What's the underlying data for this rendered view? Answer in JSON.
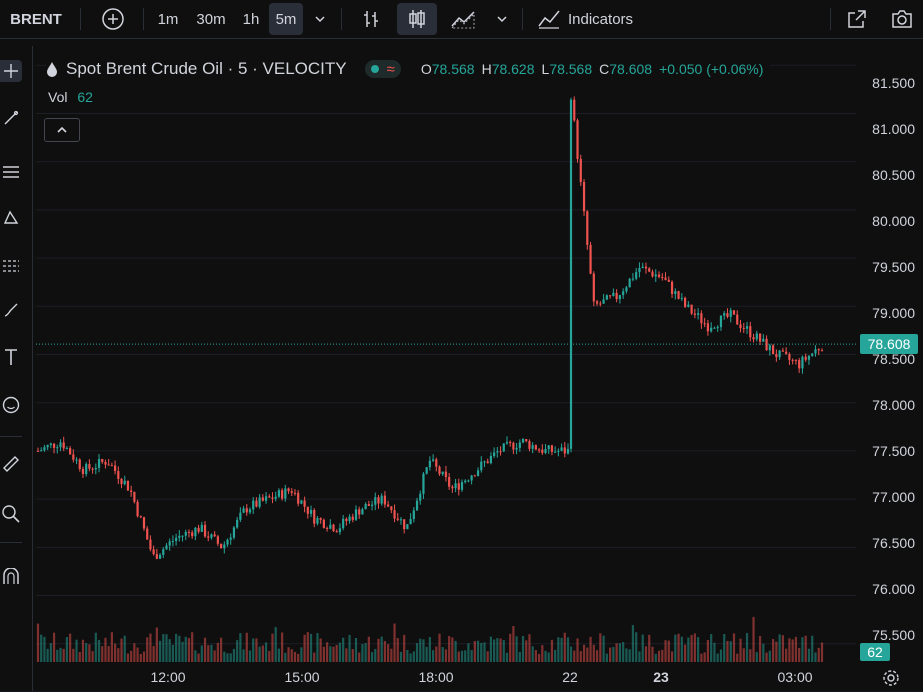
{
  "toolbar": {
    "symbol": "BRENT",
    "intervals": [
      "1m",
      "30m",
      "1h",
      "5m"
    ],
    "active_interval": "5m",
    "indicators_label": "Indicators"
  },
  "legend": {
    "title": "Spot Brent Crude Oil · 5 · VELOCITY",
    "open_label": "O",
    "open": "78.568",
    "high_label": "H",
    "high": "78.628",
    "low_label": "L",
    "low": "78.568",
    "close_label": "C",
    "close": "78.608",
    "change": "+0.050 (+0.06%)",
    "vol_label": "Vol",
    "vol_value": "62"
  },
  "price_scale": {
    "ticks": [
      "81.500",
      "81.000",
      "80.500",
      "80.000",
      "79.500",
      "79.000",
      "78.500",
      "78.000",
      "77.500",
      "77.000",
      "76.500",
      "76.000",
      "75.500"
    ],
    "current_price": "78.608",
    "current_volume": "62"
  },
  "time_axis": {
    "labels": [
      "12:00",
      "15:00",
      "18:00",
      "22",
      "23",
      "03:00"
    ]
  },
  "colors": {
    "up": "#26a69a",
    "down": "#ef5350",
    "bg": "#0f0f0f"
  },
  "icons": [
    "plus-circle-icon",
    "chevron-down-icon",
    "bar-chart-icon",
    "candles-icon",
    "area-chart-icon",
    "indicators-icon",
    "snapshot-icon",
    "camera-icon",
    "crosshair-icon",
    "trendline-icon",
    "fib-icon",
    "pattern-icon",
    "forecast-icon",
    "brush-icon",
    "text-icon",
    "emoji-icon",
    "ruler-icon",
    "zoom-icon",
    "magnet-icon",
    "settings-icon"
  ],
  "chart_data": {
    "type": "candlestick",
    "ylim": [
      75.3,
      81.7
    ],
    "series": [
      {
        "name": "price_path",
        "x": [
          "10:00",
          "10:30",
          "11:00",
          "11:30",
          "11:50",
          "12:00",
          "12:30",
          "13:00",
          "13:30",
          "14:00",
          "14:30",
          "15:00",
          "15:30",
          "16:00",
          "16:30",
          "17:00",
          "17:30",
          "18:00",
          "18:30",
          "19:00",
          "19:30",
          "20:00",
          "20:30",
          "21:00",
          "22:00",
          "22:30",
          "23:00",
          "23:30",
          "00:00",
          "00:30",
          "01:00",
          "01:30",
          "02:00",
          "02:30",
          "03:00",
          "03:15"
        ],
        "values": [
          77.5,
          77.6,
          77.3,
          77.4,
          77.1,
          76.4,
          76.6,
          76.7,
          76.5,
          76.9,
          77.0,
          77.1,
          76.8,
          76.7,
          76.9,
          77.0,
          76.7,
          77.4,
          77.1,
          77.3,
          77.5,
          77.6,
          77.5,
          77.5,
          81.2,
          79.0,
          79.1,
          79.4,
          79.3,
          79.0,
          78.8,
          78.9,
          78.7,
          78.5,
          78.4,
          78.6
        ]
      }
    ]
  }
}
